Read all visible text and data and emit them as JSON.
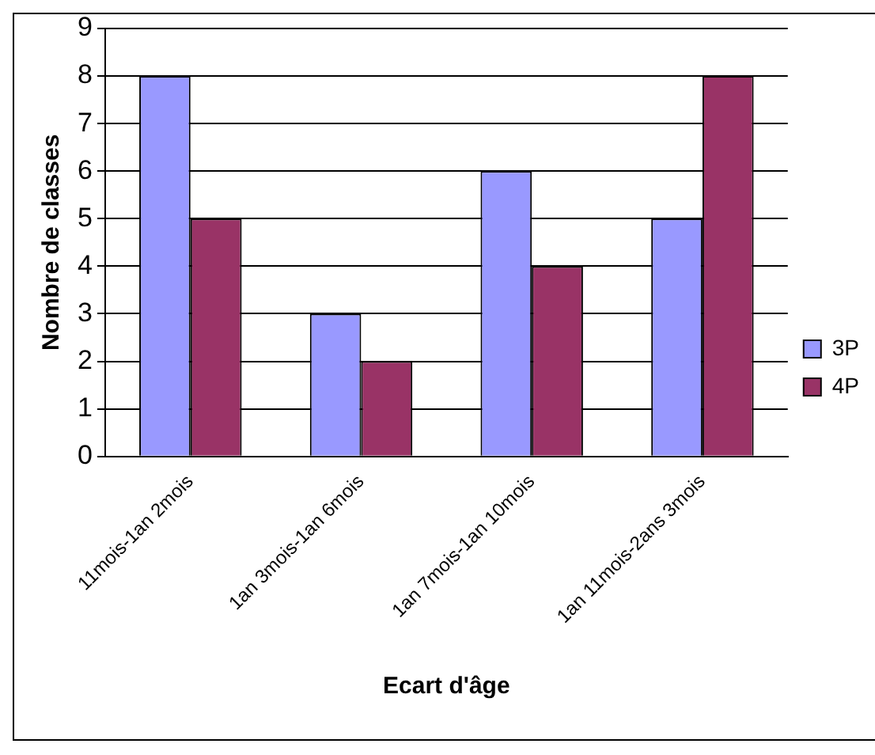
{
  "chart_data": {
    "type": "bar",
    "xlabel": "Ecart d'âge",
    "ylabel": "Nombre de classes",
    "categories": [
      "11mois-1an 2mois",
      "1an 3mois-1an 6mois",
      "1an 7mois-1an 10mois",
      "1an 11mois-2ans 3mois"
    ],
    "series": [
      {
        "name": "3P",
        "color": "#9999ff",
        "values": [
          8,
          3,
          6,
          5
        ]
      },
      {
        "name": "4P",
        "color": "#993366",
        "values": [
          5,
          2,
          4,
          8
        ]
      }
    ],
    "ylim": [
      0,
      9
    ],
    "yticks": [
      0,
      1,
      2,
      3,
      4,
      5,
      6,
      7,
      8,
      9
    ],
    "grid": "y",
    "legend": "right"
  }
}
